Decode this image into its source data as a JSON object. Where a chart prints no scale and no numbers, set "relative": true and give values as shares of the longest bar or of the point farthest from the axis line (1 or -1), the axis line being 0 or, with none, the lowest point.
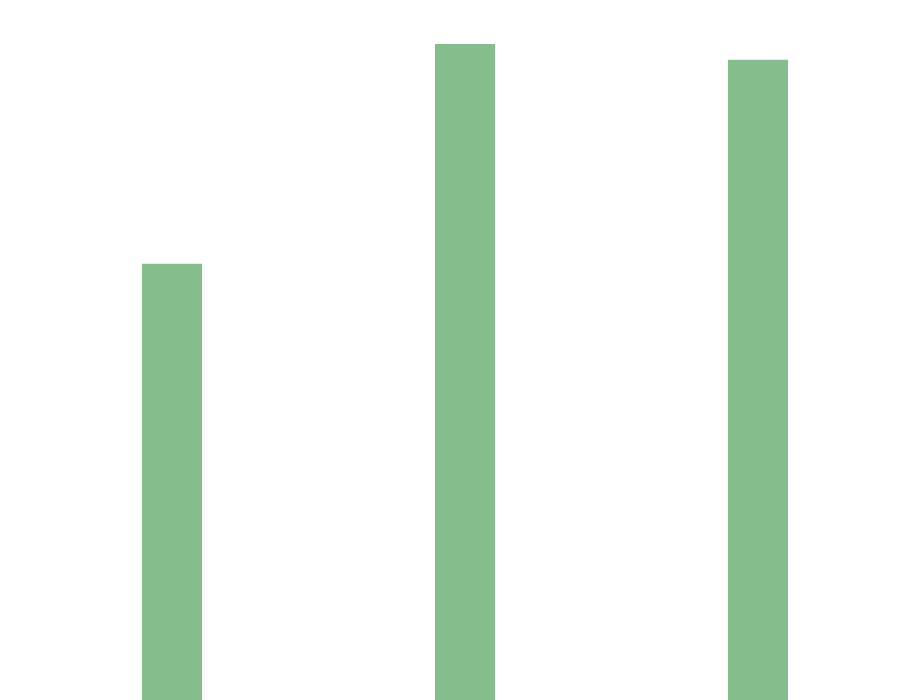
{
  "chart_data": {
    "type": "bar",
    "relative": true,
    "categories": [
      null,
      null,
      null
    ],
    "values": [
      0.665,
      1,
      0.976
    ],
    "color": "#86bd8c"
  }
}
